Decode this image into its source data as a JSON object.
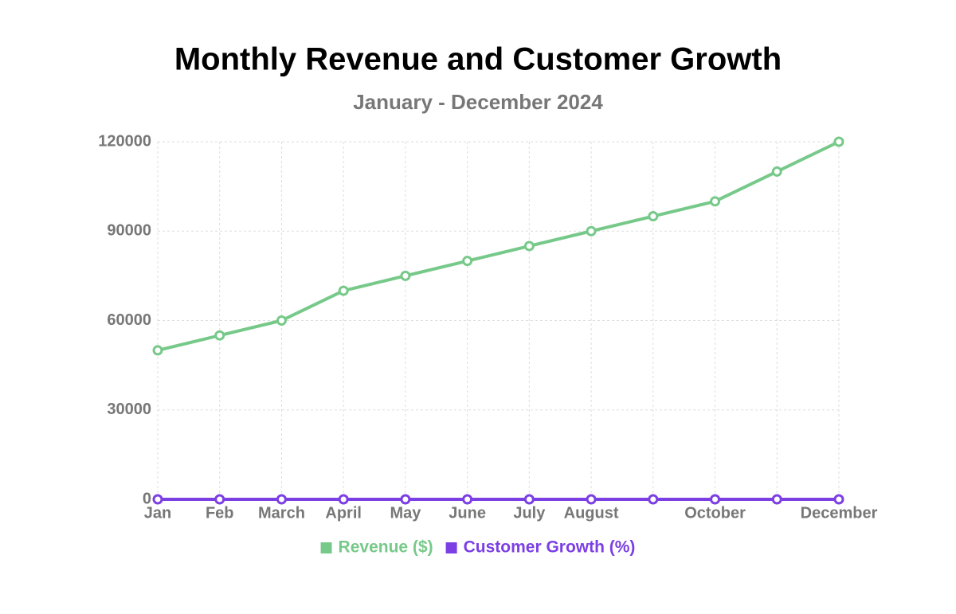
{
  "chart_data": {
    "type": "line",
    "title": "Monthly Revenue and Customer Growth",
    "subtitle": "January - December 2024",
    "categories": [
      "Jan",
      "Feb",
      "March",
      "April",
      "May",
      "June",
      "July",
      "August",
      null,
      "October",
      null,
      "December"
    ],
    "series": [
      {
        "name": "Revenue ($)",
        "color": "#77c98a",
        "values": [
          50000,
          55000,
          60000,
          70000,
          75000,
          80000,
          85000,
          90000,
          95000,
          100000,
          110000,
          120000
        ]
      },
      {
        "name": "Customer Growth (%)",
        "color": "#7b3fe4",
        "values": [
          0,
          0,
          0,
          0,
          0,
          0,
          0,
          0,
          0,
          0,
          0,
          0
        ]
      }
    ],
    "ylim": [
      0,
      120000
    ],
    "yticks": [
      0,
      30000,
      60000,
      90000,
      120000
    ],
    "grid": true,
    "legend": "bottom"
  }
}
